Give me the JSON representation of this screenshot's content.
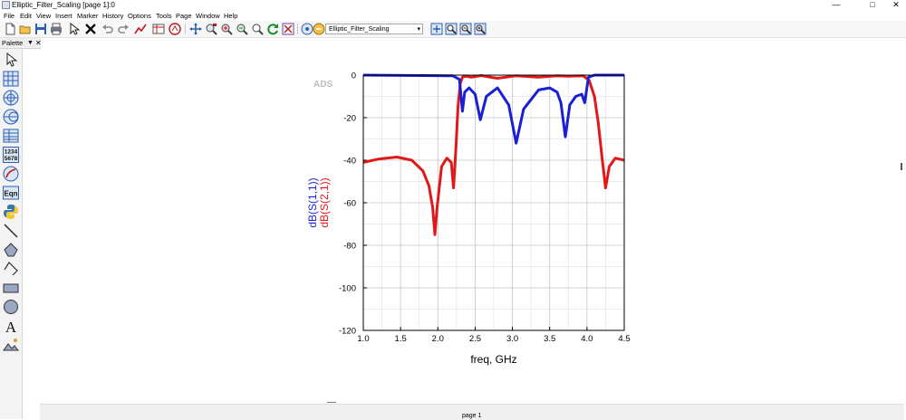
{
  "window": {
    "title": "Elliptic_Filter_Scaling [page 1]:0",
    "minimize": "—",
    "maximize": "□",
    "close": "✕"
  },
  "menu": [
    {
      "id": "file",
      "label": "File"
    },
    {
      "id": "edit",
      "label": "Edit"
    },
    {
      "id": "view",
      "label": "View"
    },
    {
      "id": "insert",
      "label": "Insert"
    },
    {
      "id": "marker",
      "label": "Marker"
    },
    {
      "id": "history",
      "label": "History"
    },
    {
      "id": "options",
      "label": "Options"
    },
    {
      "id": "tools",
      "label": "Tools"
    },
    {
      "id": "page",
      "label": "Page"
    },
    {
      "id": "window",
      "label": "Window"
    },
    {
      "id": "help",
      "label": "Help"
    }
  ],
  "toolbar": {
    "icons": [
      "new-document-icon",
      "open-folder-icon",
      "save-icon",
      "print-icon",
      "select-pointer-icon",
      "delete-icon",
      "undo-icon",
      "redo-icon",
      "insert-marker-icon",
      "dataset-icon",
      "ads-logo-icon",
      "move-icon",
      "zoom-area-icon",
      "zoom-in-icon",
      "zoom-out-icon",
      "zoom-plot-icon",
      "refresh-icon",
      "clear-icon",
      "page-setup-icon",
      "page-icon",
      "fit-page-icon",
      "zoom-page-in-icon",
      "zoom-page-out-icon",
      "zoom-page-fit-icon"
    ],
    "page_select": {
      "value": "Elliptic_Filter_Scaling",
      "arrow": "▾"
    }
  },
  "palette": {
    "title": "Palette",
    "pin": "▼",
    "close": "✕",
    "items": [
      "select-arrow-icon",
      "rectangular-plot-icon",
      "polar-plot-icon",
      "smith-chart-icon",
      "list-table-icon",
      "stacked-plot-icon",
      "antenna-plot-icon",
      "equation-icon",
      "python-icon",
      "line-icon",
      "polygon-icon",
      "polyline-icon",
      "rectangle-icon",
      "circle-icon",
      "text-icon",
      "image-icon"
    ],
    "numeric_label_top": "1234",
    "numeric_label_bottom": "5678",
    "eqn_label": "Eqn",
    "text_label": "A"
  },
  "status": {
    "page_tab": "page 1"
  },
  "colors": {
    "s11": "#1a1fd6",
    "s21": "#e01818",
    "grid": "#c4c4c4"
  },
  "chart_data": {
    "type": "line",
    "watermark": "ADS",
    "xlabel": "freq, GHz",
    "ylabel": [
      "dB(S(1,1))",
      "dB(S(2,1))"
    ],
    "xlim": [
      1.0,
      4.5
    ],
    "ylim": [
      -120,
      0
    ],
    "xticks": [
      1.0,
      1.5,
      2.0,
      2.5,
      3.0,
      3.5,
      4.0,
      4.5
    ],
    "yticks": [
      0,
      -20,
      -40,
      -60,
      -80,
      -100,
      -120
    ],
    "x_tick_labels": [
      "1.0",
      "1.5",
      "2.0",
      "2.5",
      "3.0",
      "3.5",
      "4.0",
      "4.5"
    ],
    "y_tick_labels": [
      "0",
      "-20",
      "-40",
      "-60",
      "-80",
      "-100",
      "-120"
    ],
    "grid": true,
    "series": [
      {
        "name": "dB(S(1,1))",
        "color": "#1a1fd6",
        "x": [
          1.0,
          2.2,
          2.29,
          2.33,
          2.36,
          2.42,
          2.5,
          2.57,
          2.65,
          2.8,
          2.95,
          3.05,
          3.15,
          3.35,
          3.5,
          3.6,
          3.65,
          3.71,
          3.77,
          3.85,
          3.93,
          3.97,
          4.02,
          4.1,
          4.5
        ],
        "y": [
          0,
          -0.3,
          -2,
          -17,
          -8,
          -6,
          -9,
          -21,
          -10,
          -6,
          -14,
          -32,
          -16,
          -7,
          -6,
          -8,
          -13,
          -29,
          -14,
          -10,
          -9,
          -13,
          -1,
          0,
          0
        ]
      },
      {
        "name": "dB(S(2,1))",
        "color": "#e01818",
        "x": [
          1.0,
          1.2,
          1.45,
          1.65,
          1.8,
          1.88,
          1.93,
          1.96,
          1.99,
          2.05,
          2.12,
          2.18,
          2.21,
          2.24,
          2.27,
          2.3,
          2.33,
          2.37,
          2.45,
          2.58,
          2.8,
          3.05,
          3.35,
          3.6,
          3.75,
          3.95,
          4.03,
          4.1,
          4.15,
          4.2,
          4.25,
          4.3,
          4.38,
          4.5
        ],
        "y": [
          -41,
          -39.5,
          -38.5,
          -40,
          -45,
          -52,
          -62,
          -75,
          -62,
          -43,
          -39,
          -41,
          -53,
          -36,
          -15,
          -4,
          -1,
          -0.5,
          -1,
          -0.2,
          -1.5,
          -0.3,
          -1,
          -0.3,
          -0.5,
          -0.3,
          -2.5,
          -10,
          -22,
          -38,
          -53,
          -43,
          -39,
          -40
        ]
      }
    ]
  }
}
